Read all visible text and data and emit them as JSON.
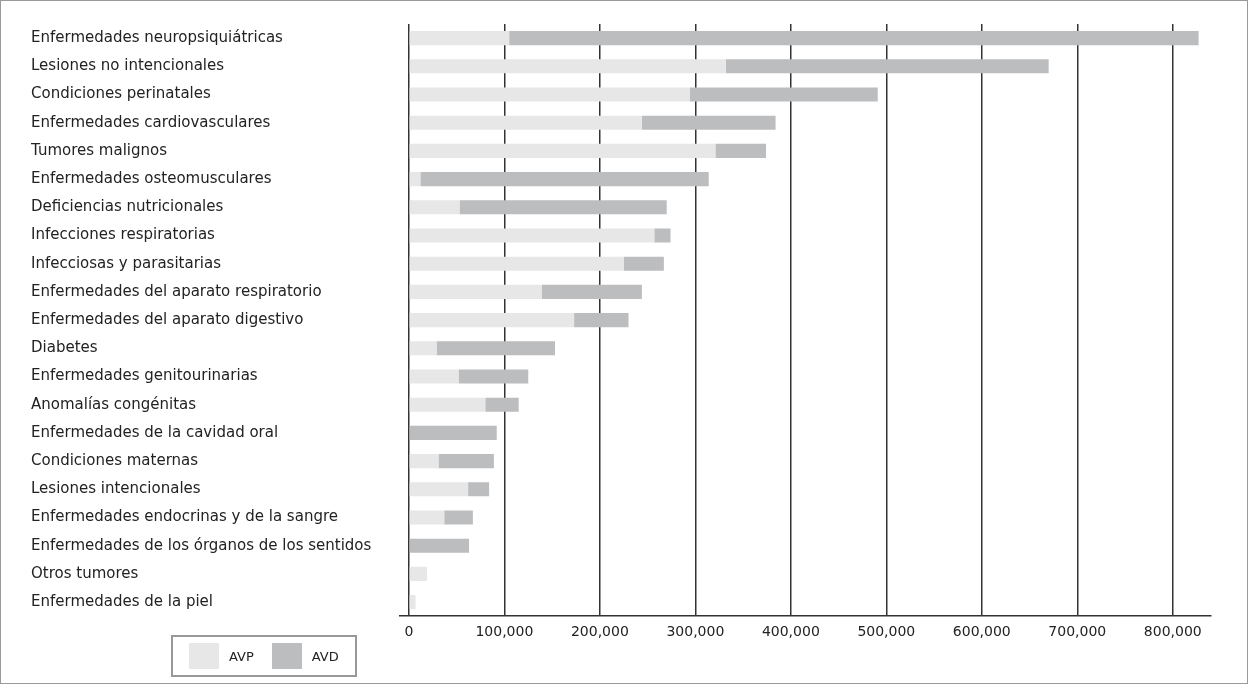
{
  "chart_data": {
    "type": "bar",
    "orientation": "horizontal",
    "stacked": true,
    "categories": [
      "Enfermedades neuropsiquiátricas",
      "Lesiones no intencionales",
      "Condiciones perinatales",
      "Enfermedades cardiovasculares",
      "Tumores malignos",
      "Enfermedades osteomusculares",
      "Deficiencias nutricionales",
      "Infecciones respiratorias",
      "Infecciosas y parasitarias",
      "Enfermedades del aparato respiratorio",
      "Enfermedades del aparato digestivo",
      "Diabetes",
      "Enfermedades genitourinarias",
      "Anomalías congénitas",
      "Enfermedades de la cavidad oral",
      "Condiciones maternas",
      "Lesiones intencionales",
      "Enfermedades endocrinas y de la sangre",
      "Enfermedades de los órganos de los sentidos",
      "Otros tumores",
      "Enfermedades de la piel"
    ],
    "series": [
      {
        "name": "AVP",
        "color": "#e6e7e6",
        "values": [
          105000,
          332000,
          294000,
          244000,
          321000,
          12000,
          53000,
          257000,
          225000,
          139000,
          173000,
          29000,
          52000,
          80000,
          0,
          31000,
          62000,
          37000,
          0,
          19000,
          7000
        ]
      },
      {
        "name": "AVD",
        "color": "#bcbdbf",
        "values": [
          722000,
          338000,
          197000,
          140000,
          53000,
          302000,
          217000,
          17000,
          42000,
          105000,
          57000,
          124000,
          73000,
          35000,
          92000,
          58000,
          22000,
          30000,
          63000,
          0,
          0
        ]
      }
    ],
    "xlim": [
      -10000,
      840000
    ],
    "xticks": [
      0,
      {
        "value": 100000,
        "label": "100,000"
      },
      {
        "value": 200000,
        "label": "200,000"
      },
      {
        "value": 300000,
        "label": "300,000"
      },
      {
        "value": 400000,
        "label": "400,000"
      },
      {
        "value": 500000,
        "label": "500,000"
      },
      {
        "value": 600000,
        "label": "600,000"
      },
      {
        "value": 700000,
        "label": "700,000"
      },
      {
        "value": 800000,
        "label": "800,000"
      }
    ],
    "grid": "x",
    "legend": "bottom left"
  }
}
